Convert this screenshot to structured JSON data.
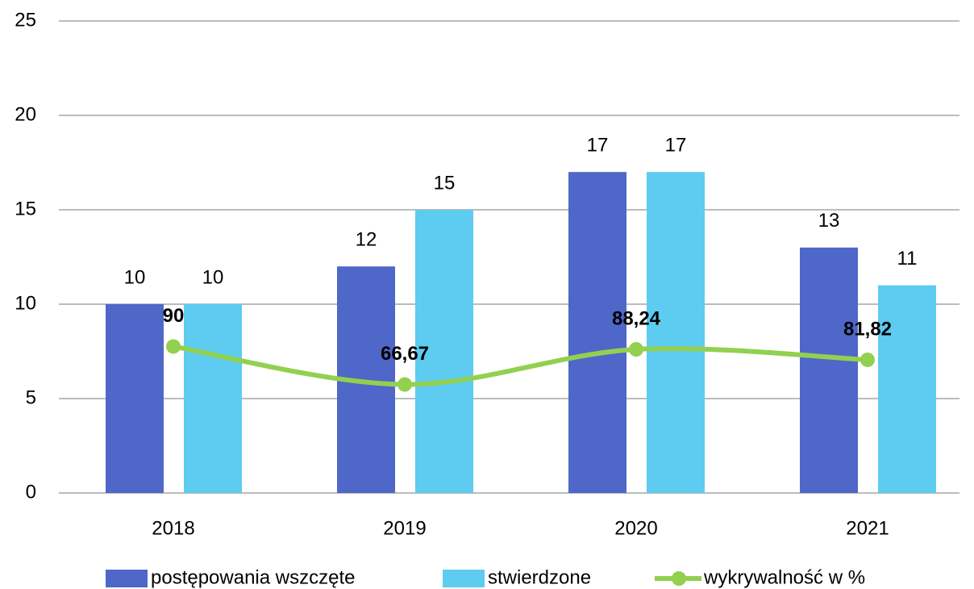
{
  "chart_data": {
    "type": "bar",
    "categories": [
      "2018",
      "2019",
      "2020",
      "2021"
    ],
    "series": [
      {
        "name": "postępowania wszczęte",
        "type": "bar",
        "color": "#4f67c8",
        "values": [
          10,
          12,
          17,
          13
        ]
      },
      {
        "name": "stwierdzone",
        "type": "bar",
        "color": "#5ecbf0",
        "values": [
          10,
          15,
          17,
          11
        ]
      },
      {
        "name": "wykrywalność w %",
        "type": "line",
        "axis": "y2",
        "color": "#92d050",
        "values": [
          90,
          66.67,
          88.24,
          81.82
        ],
        "value_labels": [
          "90",
          "66,67",
          "88,24",
          "81,82"
        ]
      }
    ],
    "ylim": [
      0,
      25
    ],
    "yticks": [
      0,
      5,
      10,
      15,
      20,
      25
    ],
    "y2lim": [
      0,
      290
    ],
    "grid": true,
    "legend": "bottom"
  }
}
